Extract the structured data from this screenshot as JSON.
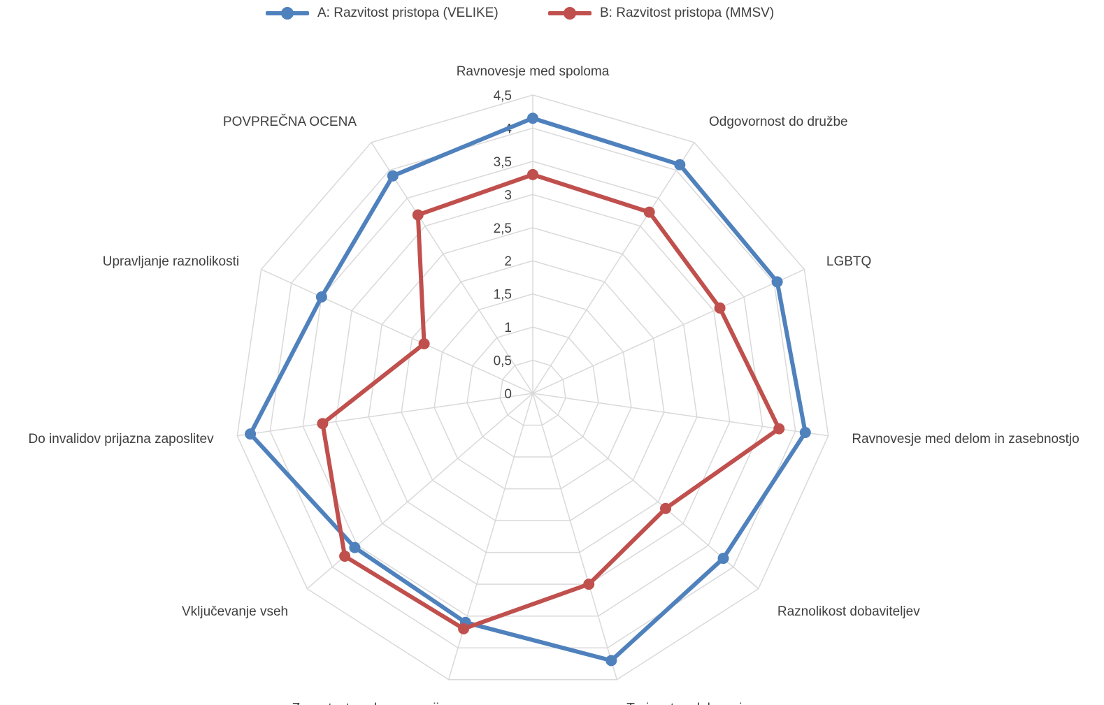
{
  "chart_data": {
    "type": "radar",
    "categories": [
      "Ravnovesje med spoloma",
      "Odgovornost do družbe",
      "LGBTQ",
      "Ravnovesje med delom in zasebnostjo",
      "Raznolikost dobaviteljev",
      "Trajnostno delovanje",
      "Zavzetost vseh generacij",
      "Vključevanje vseh",
      "Do invalidov prijazna zaposlitev",
      "Upravljanje raznolikosti",
      "POVPREČNA OCENA"
    ],
    "series": [
      {
        "name": "A: Razvitost pristopa (VELIKE)",
        "color": "#4F81BD",
        "values": [
          4.15,
          4.1,
          4.05,
          4.15,
          3.8,
          4.2,
          3.6,
          3.55,
          4.3,
          3.5,
          3.9
        ]
      },
      {
        "name": "B: Razvitost pristopa (MMSV)",
        "color": "#C0504D",
        "values": [
          3.3,
          3.25,
          3.1,
          3.75,
          2.65,
          3.0,
          3.7,
          3.75,
          3.2,
          1.8,
          3.2
        ]
      }
    ],
    "ticks": [
      "0",
      "0,5",
      "1",
      "1,5",
      "2",
      "2,5",
      "3",
      "3,5",
      "4",
      "4,5"
    ],
    "rlim": [
      0,
      4.5
    ],
    "grid": true,
    "legend_position": "top"
  }
}
